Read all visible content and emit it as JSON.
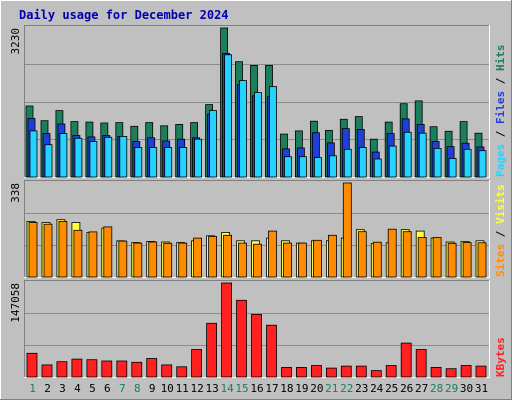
{
  "title": "Daily usage for December 2024",
  "chart_data": [
    {
      "type": "bar",
      "panel": "hits-files-pages",
      "categories": [
        "1",
        "2",
        "3",
        "4",
        "5",
        "6",
        "7",
        "8",
        "9",
        "10",
        "11",
        "12",
        "13",
        "14",
        "15",
        "16",
        "17",
        "18",
        "19",
        "20",
        "21",
        "22",
        "23",
        "24",
        "25",
        "26",
        "27",
        "28",
        "29",
        "30",
        "31"
      ],
      "max_label": "3230",
      "ymax": 3230,
      "ylabels": [
        "Pages",
        "Files",
        "Hits"
      ],
      "series": [
        {
          "name": "Hits",
          "color": "#1a7f5a",
          "values": [
            1540,
            1220,
            1440,
            1200,
            1190,
            1170,
            1180,
            1100,
            1180,
            1110,
            1140,
            1180,
            1570,
            3230,
            2500,
            2420,
            2420,
            930,
            1000,
            1210,
            1010,
            1250,
            1310,
            820,
            1190,
            1590,
            1650,
            1090,
            990,
            1200,
            950
          ]
        },
        {
          "name": "Files",
          "color": "#1e3fd8",
          "values": [
            1270,
            940,
            1150,
            900,
            870,
            900,
            880,
            770,
            850,
            780,
            820,
            850,
            1360,
            2680,
            2000,
            1760,
            1740,
            610,
            630,
            960,
            740,
            1050,
            1030,
            540,
            940,
            1260,
            1140,
            770,
            660,
            730,
            650
          ]
        },
        {
          "name": "Pages",
          "color": "#22d4ff",
          "values": [
            1000,
            700,
            940,
            840,
            770,
            860,
            880,
            640,
            640,
            640,
            640,
            820,
            1440,
            2650,
            2090,
            1830,
            1960,
            440,
            440,
            420,
            460,
            600,
            640,
            390,
            670,
            970,
            950,
            620,
            400,
            600,
            570
          ]
        }
      ]
    },
    {
      "type": "bar",
      "panel": "visits-sites",
      "max_label": "338",
      "ymax": 338,
      "ylabels": [
        "Sites",
        "Visits"
      ],
      "series": [
        {
          "name": "Visits",
          "color": "#ffff40",
          "values": [
            200,
            196,
            206,
            196,
            160,
            176,
            130,
            124,
            128,
            126,
            124,
            130,
            148,
            160,
            130,
            130,
            140,
            130,
            122,
            130,
            130,
            140,
            170,
            120,
            123,
            170,
            165,
            140,
            126,
            128,
            130
          ]
        },
        {
          "name": "Sites",
          "color": "#ff8c00",
          "values": [
            196,
            190,
            200,
            168,
            162,
            180,
            129,
            122,
            126,
            121,
            122,
            140,
            146,
            150,
            122,
            118,
            165,
            122,
            122,
            132,
            150,
            338,
            163,
            125,
            172,
            163,
            142,
            142,
            121,
            124,
            123
          ]
        }
      ]
    },
    {
      "type": "bar",
      "panel": "kbytes",
      "max_label": "147058",
      "ymax": 147058,
      "ylabels": [
        "KBytes"
      ],
      "series": [
        {
          "name": "KBytes",
          "color": "#ff2020",
          "values": [
            37000,
            19000,
            24000,
            28000,
            27000,
            25000,
            25000,
            23000,
            29000,
            19000,
            16000,
            43000,
            84000,
            147058,
            120000,
            98000,
            81000,
            15000,
            15000,
            18000,
            14000,
            17000,
            17000,
            10000,
            18000,
            53000,
            43000,
            15000,
            13000,
            18000,
            17000
          ]
        }
      ]
    }
  ]
}
